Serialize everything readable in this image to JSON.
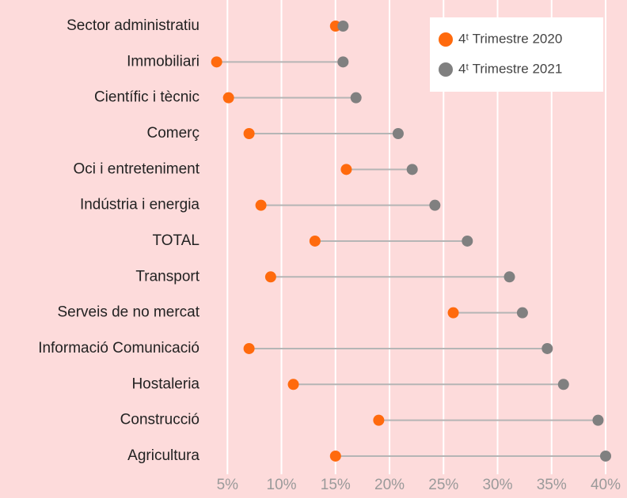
{
  "chart_data": {
    "type": "dumbbell",
    "categories": [
      "Sector administratiu",
      "Immobiliari",
      "Científic i tècnic",
      "Comerç",
      "Oci i entreteniment",
      "Indústria i energia",
      "TOTAL",
      "Transport",
      "Serveis de no mercat",
      "Informació Comunicació",
      "Hostaleria",
      "Construcció",
      "Agricultura"
    ],
    "series": [
      {
        "name": "4ᵗ Trimestre 2020",
        "color": "#ff6a0d",
        "values": [
          15.0,
          4.0,
          5.1,
          7.0,
          16.0,
          8.1,
          13.1,
          9.0,
          25.9,
          7.0,
          11.1,
          19.0,
          15.0
        ]
      },
      {
        "name": "4ᵗ Trimestre 2021",
        "color": "#808080",
        "values": [
          15.7,
          15.7,
          16.9,
          20.8,
          22.1,
          24.2,
          27.2,
          31.1,
          32.3,
          34.6,
          36.1,
          39.3,
          40.0
        ]
      }
    ],
    "xlim": [
      3,
      40
    ],
    "xticks": [
      {
        "value": 5,
        "label": "5%"
      },
      {
        "value": 10,
        "label": "10%"
      },
      {
        "value": 15,
        "label": "15%"
      },
      {
        "value": 20,
        "label": "20%"
      },
      {
        "value": 25,
        "label": "25%"
      },
      {
        "value": 30,
        "label": "30%"
      },
      {
        "value": 35,
        "label": "35%"
      },
      {
        "value": 40,
        "label": "40%"
      }
    ],
    "grid": true,
    "legend": "upper right"
  }
}
